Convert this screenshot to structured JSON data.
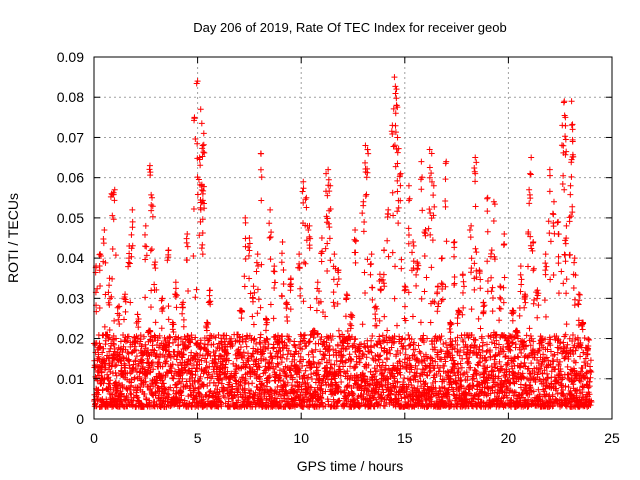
{
  "chart_data": {
    "type": "scatter",
    "title": "Day 206 of 2019, Rate Of TEC Index for receiver geob",
    "xlabel": "GPS time / hours",
    "ylabel": "ROTI / TECUs",
    "xlim": [
      0,
      25
    ],
    "ylim": [
      0,
      0.09
    ],
    "x_ticks": [
      "0",
      "5",
      "10",
      "15",
      "20",
      "25"
    ],
    "y_ticks": [
      "0",
      "0.01",
      "0.02",
      "0.03",
      "0.04",
      "0.05",
      "0.06",
      "0.07",
      "0.08",
      "0.09"
    ],
    "grid": true,
    "marker": "+",
    "marker_color": "#ff0000",
    "series": [
      {
        "name": "ROTI",
        "x": [
          0.1,
          0.2,
          0.35,
          0.5,
          0.6,
          0.75,
          0.85,
          0.95,
          1.05,
          1.2,
          1.35,
          1.5,
          1.7,
          1.85,
          2.0,
          2.1,
          2.3,
          2.5,
          2.65,
          2.8,
          2.95,
          3.1,
          3.3,
          3.45,
          3.6,
          3.8,
          3.95,
          4.1,
          4.3,
          4.5,
          4.65,
          4.85,
          5.0,
          5.1,
          5.2,
          5.3,
          5.45,
          5.6,
          5.8,
          6.0,
          6.3,
          6.6,
          6.9,
          7.1,
          7.3,
          7.5,
          7.7,
          7.9,
          8.1,
          8.3,
          8.5,
          8.7,
          8.9,
          9.1,
          9.3,
          9.5,
          9.7,
          9.9,
          10.1,
          10.25,
          10.4,
          10.6,
          10.8,
          11.0,
          11.2,
          11.4,
          11.6,
          11.8,
          12.0,
          12.2,
          12.4,
          12.6,
          12.8,
          13.0,
          13.2,
          13.4,
          13.6,
          13.8,
          14.0,
          14.2,
          14.4,
          14.5,
          14.6,
          14.8,
          15.0,
          15.2,
          15.4,
          15.6,
          15.8,
          16.0,
          16.2,
          16.4,
          16.6,
          16.8,
          17.0,
          17.2,
          17.4,
          17.6,
          17.8,
          18.0,
          18.2,
          18.4,
          18.6,
          18.8,
          19.0,
          19.2,
          19.4,
          19.6,
          19.8,
          20.0,
          20.2,
          20.4,
          20.6,
          20.8,
          21.0,
          21.2,
          21.4,
          21.6,
          21.8,
          22.0,
          22.2,
          22.4,
          22.6,
          22.8,
          23.0,
          23.2,
          23.4,
          23.6,
          23.8,
          0.3,
          1.0,
          2.7,
          5.15,
          5.25,
          8.05,
          11.3,
          13.1,
          14.6,
          14.65,
          16.3,
          18.4,
          19.3,
          21.1,
          22.7,
          22.75,
          23.05,
          23.1
        ],
        "y": [
          0.038,
          0.012,
          0.009,
          0.047,
          0.021,
          0.035,
          0.056,
          0.015,
          0.008,
          0.028,
          0.011,
          0.031,
          0.043,
          0.052,
          0.019,
          0.026,
          0.014,
          0.048,
          0.022,
          0.055,
          0.039,
          0.013,
          0.03,
          0.017,
          0.042,
          0.024,
          0.034,
          0.01,
          0.029,
          0.046,
          0.019,
          0.075,
          0.084,
          0.065,
          0.058,
          0.071,
          0.024,
          0.032,
          0.013,
          0.009,
          0.011,
          0.018,
          0.021,
          0.027,
          0.05,
          0.045,
          0.033,
          0.041,
          0.016,
          0.025,
          0.052,
          0.038,
          0.019,
          0.044,
          0.029,
          0.035,
          0.012,
          0.041,
          0.059,
          0.055,
          0.048,
          0.022,
          0.034,
          0.045,
          0.061,
          0.058,
          0.041,
          0.037,
          0.019,
          0.031,
          0.026,
          0.047,
          0.015,
          0.054,
          0.067,
          0.041,
          0.028,
          0.036,
          0.042,
          0.052,
          0.073,
          0.085,
          0.078,
          0.061,
          0.033,
          0.058,
          0.044,
          0.039,
          0.064,
          0.047,
          0.067,
          0.058,
          0.033,
          0.04,
          0.064,
          0.024,
          0.044,
          0.027,
          0.036,
          0.015,
          0.048,
          0.061,
          0.037,
          0.029,
          0.055,
          0.042,
          0.021,
          0.033,
          0.046,
          0.018,
          0.027,
          0.022,
          0.038,
          0.031,
          0.057,
          0.044,
          0.032,
          0.019,
          0.041,
          0.062,
          0.054,
          0.049,
          0.073,
          0.048,
          0.058,
          0.04,
          0.031,
          0.024,
          0.016,
          0.041,
          0.057,
          0.063,
          0.077,
          0.068,
          0.066,
          0.062,
          0.068,
          0.082,
          0.07,
          0.066,
          0.065,
          0.054,
          0.065,
          0.079,
          0.075,
          0.079,
          0.072
        ],
        "baseline_band_tecu": [
          0.003,
          0.021
        ]
      }
    ]
  }
}
